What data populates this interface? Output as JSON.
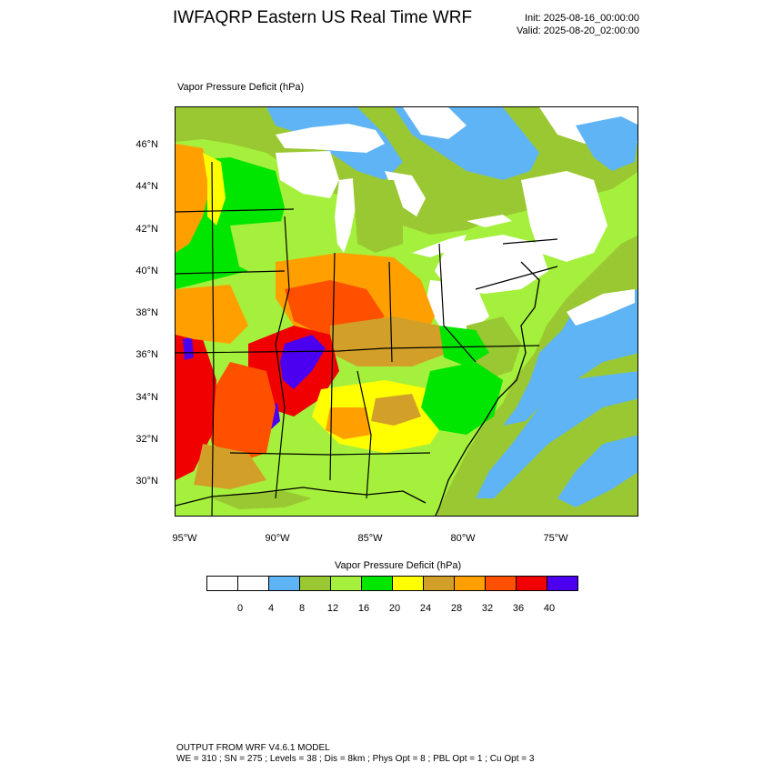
{
  "header": {
    "title": "IWFAQRP Eastern US Real Time WRF",
    "init": "Init: 2025-08-16_00:00:00",
    "valid": "Valid: 2025-08-20_02:00:00"
  },
  "map": {
    "subtitle": "Vapor Pressure Deficit   (hPa)",
    "latitude_labels": [
      "46°N",
      "44°N",
      "42°N",
      "40°N",
      "38°N",
      "36°N",
      "34°N",
      "32°N",
      "30°N"
    ],
    "longitude_labels": [
      "95°W",
      "90°W",
      "85°W",
      "80°W",
      "75°W"
    ]
  },
  "legend": {
    "title": "Vapor Pressure Deficit  (hPa)",
    "colors": [
      "#ffffff",
      "#ffffff",
      "#5fb4f5",
      "#9ac832",
      "#a5f03c",
      "#00e600",
      "#ffff00",
      "#d2a028",
      "#ffa000",
      "#ff5000",
      "#f00000",
      "#4b00f0"
    ],
    "labels": [
      "0",
      "4",
      "8",
      "12",
      "16",
      "20",
      "24",
      "28",
      "32",
      "36",
      "40"
    ]
  },
  "footer": {
    "line1": "OUTPUT FROM WRF V4.6.1 MODEL",
    "line2": "WE = 310 ; SN = 275 ; Levels = 38 ; Dis = 8km ; Phys Opt = 8 ; PBL Opt = 1 ; Cu Opt = 3"
  }
}
